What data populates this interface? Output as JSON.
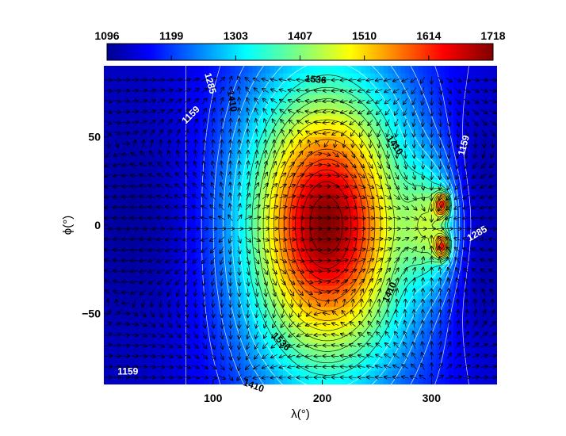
{
  "chart_data": {
    "type": "heatmap",
    "title": "",
    "xlabel": "λ(°)",
    "ylabel": "ϕ(°)",
    "xlim": [
      0,
      360
    ],
    "ylim": [
      -90,
      90
    ],
    "xticks": [
      "100",
      "200",
      "300"
    ],
    "xtick_values": [
      100,
      200,
      300
    ],
    "yticks": [
      "50",
      "0",
      "−50"
    ],
    "ytick_values": [
      50,
      0,
      -50
    ],
    "colorbar": {
      "orientation": "horizontal",
      "placement": "top",
      "range": [
        1096,
        1718
      ],
      "ticks": [
        "1096",
        "1199",
        "1303",
        "1407",
        "1510",
        "1614",
        "1718"
      ],
      "colormap": "jet"
    },
    "contour_labels": [
      {
        "text": "1159",
        "lon": 80,
        "lat": 62,
        "color": "#ffffff",
        "rotate": -45
      },
      {
        "text": "1285",
        "lon": 97,
        "lat": 80,
        "color": "#ffffff",
        "rotate": 75
      },
      {
        "text": "1410",
        "lon": 117,
        "lat": 70,
        "color": "#000000",
        "rotate": 80
      },
      {
        "text": "1536",
        "lon": 194,
        "lat": 82,
        "color": "#000000",
        "rotate": 5
      },
      {
        "text": "1410",
        "lon": 266,
        "lat": 45,
        "color": "#000000",
        "rotate": 55
      },
      {
        "text": "1285",
        "lon": 255,
        "lat": 115,
        "color": "#ffffff",
        "rotate": -80
      },
      {
        "text": "1159",
        "lon": 330,
        "lat": 45,
        "color": "#ffffff",
        "rotate": -75
      },
      {
        "text": "1285",
        "lon": 342,
        "lat": -5,
        "color": "#ffffff",
        "rotate": -30
      },
      {
        "text": "1410",
        "lon": 262,
        "lat": -38,
        "color": "#000000",
        "rotate": -65
      },
      {
        "text": "1536",
        "lon": 162,
        "lat": -66,
        "color": "#000000",
        "rotate": 45
      },
      {
        "text": "1410",
        "lon": 137,
        "lat": -91,
        "color": "#000000",
        "rotate": 20
      },
      {
        "text": "1285",
        "lon": 98,
        "lat": -96,
        "color": "#ffffff",
        "rotate": 80
      },
      {
        "text": "1159",
        "lon": 22,
        "lat": -83,
        "color": "#ffffff",
        "rotate": 0
      },
      {
        "text": "1285",
        "lon": 231,
        "lat": -122,
        "color": "#ffffff",
        "rotate": 0
      }
    ]
  }
}
